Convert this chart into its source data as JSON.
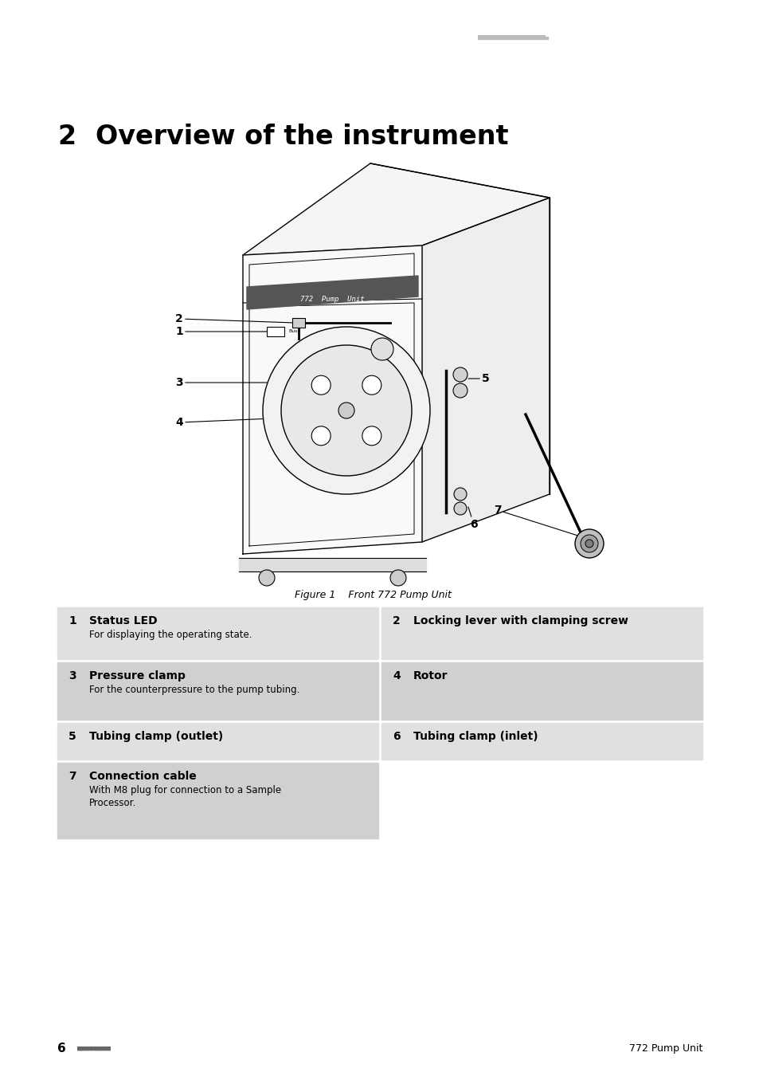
{
  "page_background": "#ffffff",
  "header_dots_color": "#bbbbbb",
  "chapter_number": "2",
  "chapter_title": "Overview of the instrument",
  "figure_caption": "Figure 1    Front 772 Pump Unit",
  "table_rows": [
    {
      "num": "1",
      "bold_text": "Status LED",
      "desc": "For displaying the operating state.",
      "num2": "2",
      "bold_text2": "Locking lever with clamping screw",
      "desc2": "",
      "row_bg": "#e0e0e0"
    },
    {
      "num": "3",
      "bold_text": "Pressure clamp",
      "desc": "For the counterpressure to the pump tubing.",
      "num2": "4",
      "bold_text2": "Rotor",
      "desc2": "",
      "row_bg": "#d0d0d0"
    },
    {
      "num": "5",
      "bold_text": "Tubing clamp (outlet)",
      "desc": "",
      "num2": "6",
      "bold_text2": "Tubing clamp (inlet)",
      "desc2": "",
      "row_bg": "#e0e0e0"
    },
    {
      "num": "7",
      "bold_text": "Connection cable",
      "desc": "With M8 plug for connection to a Sample\nProcessor.",
      "num2": "",
      "bold_text2": "",
      "desc2": "",
      "row_bg": "#d0d0d0"
    }
  ],
  "footer_left_num": "6",
  "footer_left_dots": "■■■■■■■■",
  "footer_right_text": "772 Pump Unit"
}
